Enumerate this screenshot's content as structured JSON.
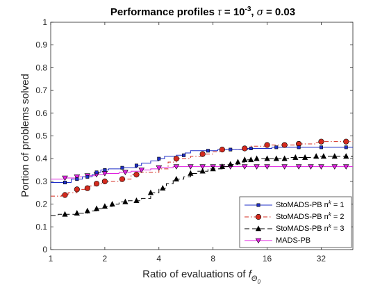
{
  "chart_data": {
    "type": "line",
    "title_text": "Performance profiles ",
    "title_tau": "τ",
    "title_eq": " = 10",
    "title_exp": "-3",
    "title_sep": ", ",
    "title_sigma": "σ",
    "title_tail": " = 0.03",
    "xlabel_text": "Ratio of evaluations of ",
    "xlabel_f": "f",
    "xlabel_sub": "Θ",
    "xlabel_subsub": "0",
    "ylabel": "Portion of problems solved",
    "x_scale": "log2",
    "xlim": [
      1,
      48
    ],
    "ylim": [
      0,
      1
    ],
    "x_ticks": [
      1,
      2,
      4,
      8,
      16,
      32
    ],
    "x_tick_labels": [
      "1",
      "2",
      "4",
      "8",
      "16",
      "32"
    ],
    "y_ticks": [
      0,
      0.1,
      0.2,
      0.3,
      0.4,
      0.5,
      0.6,
      0.7,
      0.8,
      0.9,
      1
    ],
    "y_tick_labels": [
      "0",
      "0.1",
      "0.2",
      "0.3",
      "0.4",
      "0.5",
      "0.6",
      "0.7",
      "0.8",
      "0.9",
      "1"
    ],
    "grid": false,
    "legend_position": "bottom-right",
    "series": [
      {
        "name": "StoMADS-PB n",
        "name_sup": "k",
        "name_tail": " = 1",
        "color": "#1f2fc8",
        "line_style": "solid",
        "marker": "square",
        "points": [
          [
            1,
            0.295
          ],
          [
            1.25,
            0.295
          ],
          [
            1.3,
            0.31
          ],
          [
            1.45,
            0.31
          ],
          [
            1.5,
            0.32
          ],
          [
            1.65,
            0.32
          ],
          [
            1.7,
            0.33
          ],
          [
            1.8,
            0.34
          ],
          [
            1.9,
            0.35
          ],
          [
            2.0,
            0.35
          ],
          [
            2.1,
            0.355
          ],
          [
            2.4,
            0.355
          ],
          [
            2.5,
            0.36
          ],
          [
            2.8,
            0.36
          ],
          [
            3.0,
            0.37
          ],
          [
            3.2,
            0.38
          ],
          [
            3.6,
            0.39
          ],
          [
            4.0,
            0.4
          ],
          [
            4.3,
            0.41
          ],
          [
            5.0,
            0.415
          ],
          [
            5.6,
            0.425
          ],
          [
            6.0,
            0.435
          ],
          [
            8.0,
            0.435
          ],
          [
            8.5,
            0.44
          ],
          [
            12,
            0.44
          ],
          [
            12.5,
            0.445
          ],
          [
            16,
            0.445
          ],
          [
            17,
            0.45
          ],
          [
            48,
            0.45
          ]
        ],
        "markers_x": [
          1.2,
          1.4,
          1.6,
          1.8,
          2.0,
          2.5,
          3.0,
          4.0,
          5.5,
          7.5,
          10,
          13,
          18,
          24,
          32,
          44
        ]
      },
      {
        "name": "StoMADS-PB n",
        "name_sup": "k",
        "name_tail": " = 2",
        "color": "#d42a1e",
        "line_style": "dashdot",
        "marker": "circle",
        "points": [
          [
            1,
            0.235
          ],
          [
            1.15,
            0.24
          ],
          [
            1.25,
            0.25
          ],
          [
            1.4,
            0.265
          ],
          [
            1.55,
            0.27
          ],
          [
            1.65,
            0.28
          ],
          [
            1.8,
            0.29
          ],
          [
            2.0,
            0.3
          ],
          [
            2.5,
            0.31
          ],
          [
            2.8,
            0.33
          ],
          [
            3.1,
            0.34
          ],
          [
            4.0,
            0.355
          ],
          [
            4.5,
            0.385
          ],
          [
            5.0,
            0.4
          ],
          [
            6.0,
            0.41
          ],
          [
            7.0,
            0.42
          ],
          [
            8.0,
            0.43
          ],
          [
            9.0,
            0.44
          ],
          [
            10,
            0.44
          ],
          [
            12,
            0.445
          ],
          [
            13,
            0.455
          ],
          [
            16,
            0.46
          ],
          [
            23,
            0.46
          ],
          [
            24,
            0.465
          ],
          [
            30,
            0.47
          ],
          [
            32,
            0.475
          ],
          [
            48,
            0.475
          ]
        ],
        "markers_x": [
          1.2,
          1.4,
          1.6,
          1.8,
          2.0,
          2.5,
          3.0,
          5.0,
          7.0,
          9.0,
          12,
          16,
          20,
          24,
          32,
          44
        ]
      },
      {
        "name": "StoMADS-PB n",
        "name_sup": "k",
        "name_tail": " = 3",
        "color": "#000000",
        "line_style": "dashed",
        "marker": "triangle",
        "points": [
          [
            1,
            0.15
          ],
          [
            1.1,
            0.155
          ],
          [
            1.4,
            0.16
          ],
          [
            1.6,
            0.17
          ],
          [
            1.8,
            0.18
          ],
          [
            2.0,
            0.19
          ],
          [
            2.2,
            0.2
          ],
          [
            2.4,
            0.21
          ],
          [
            2.7,
            0.215
          ],
          [
            3.2,
            0.225
          ],
          [
            3.6,
            0.25
          ],
          [
            4.0,
            0.27
          ],
          [
            4.4,
            0.29
          ],
          [
            4.8,
            0.31
          ],
          [
            5.5,
            0.32
          ],
          [
            6.0,
            0.335
          ],
          [
            6.5,
            0.345
          ],
          [
            7.5,
            0.355
          ],
          [
            9.0,
            0.365
          ],
          [
            10,
            0.375
          ],
          [
            11,
            0.385
          ],
          [
            12,
            0.395
          ],
          [
            14,
            0.4
          ],
          [
            20,
            0.4
          ],
          [
            21,
            0.405
          ],
          [
            28,
            0.405
          ],
          [
            30,
            0.41
          ],
          [
            48,
            0.41
          ]
        ],
        "markers_x": [
          1.2,
          1.4,
          1.6,
          1.8,
          2.0,
          2.2,
          2.6,
          3.0,
          3.6,
          4.2,
          5.0,
          6.0,
          7.0,
          8.0,
          9.0,
          10,
          11,
          12,
          13,
          14,
          16,
          18,
          20,
          23,
          26,
          30,
          33,
          38,
          44
        ]
      },
      {
        "name": "MADS-PB",
        "name_sup": "",
        "name_tail": "",
        "color": "#e020e0",
        "line_style": "solid",
        "marker": "triangle-down",
        "points": [
          [
            1,
            0.31
          ],
          [
            1.2,
            0.315
          ],
          [
            1.4,
            0.32
          ],
          [
            1.6,
            0.325
          ],
          [
            1.8,
            0.33
          ],
          [
            2.0,
            0.335
          ],
          [
            2.4,
            0.34
          ],
          [
            2.8,
            0.345
          ],
          [
            3.2,
            0.35
          ],
          [
            3.6,
            0.355
          ],
          [
            4.0,
            0.36
          ],
          [
            4.8,
            0.365
          ],
          [
            48,
            0.365
          ]
        ],
        "markers_x": [
          1.2,
          1.4,
          1.6,
          1.8,
          2.0,
          2.6,
          3.2,
          4.0,
          5.0,
          6.0,
          7.0,
          8.0,
          9.0,
          10,
          12,
          14,
          16,
          20,
          24,
          28,
          32,
          38,
          44
        ]
      }
    ]
  }
}
